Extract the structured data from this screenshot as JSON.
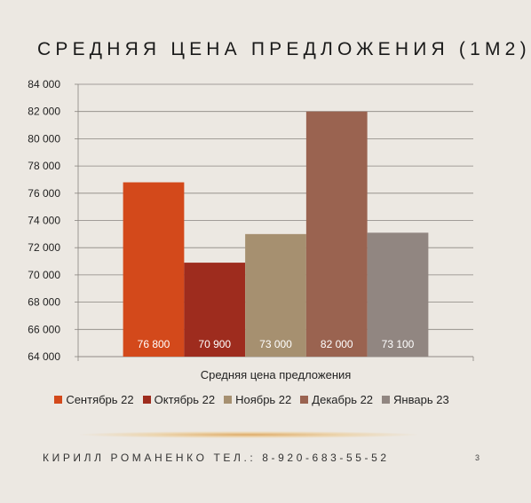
{
  "slide": {
    "title": "СРЕДНЯЯ ЦЕНА ПРЕДЛОЖЕНИЯ (1М2)",
    "footer": "КИРИЛЛ РОМАНЕНКО ТЕЛ.: 8-920-683-55-52",
    "page_number": "3"
  },
  "chart_data": {
    "type": "bar",
    "title": "",
    "xlabel": "Средняя цена предложения",
    "ylabel": "",
    "categories": [
      "Средняя цена предложения"
    ],
    "series": [
      {
        "name": "Сентябрь 22",
        "values": [
          76800
        ],
        "label": "76 800",
        "color": "#d3491b"
      },
      {
        "name": "Октябрь 22",
        "values": [
          70900
        ],
        "label": "70 900",
        "color": "#9e2c1e"
      },
      {
        "name": "Ноябрь 22",
        "values": [
          73000
        ],
        "label": "73 000",
        "color": "#a69070"
      },
      {
        "name": "Декабрь 22",
        "values": [
          82000
        ],
        "label": "82 000",
        "color": "#9a6350"
      },
      {
        "name": "Январь 23",
        "values": [
          73100
        ],
        "label": "73 100",
        "color": "#918681"
      }
    ],
    "ylim": [
      64000,
      84000
    ],
    "y_ticks": [
      {
        "value": 64000,
        "label": "64 000"
      },
      {
        "value": 66000,
        "label": "66 000"
      },
      {
        "value": 68000,
        "label": "68 000"
      },
      {
        "value": 70000,
        "label": "70 000"
      },
      {
        "value": 72000,
        "label": "72 000"
      },
      {
        "value": 74000,
        "label": "74 000"
      },
      {
        "value": 76000,
        "label": "76 000"
      },
      {
        "value": 78000,
        "label": "78 000"
      },
      {
        "value": 80000,
        "label": "80 000"
      },
      {
        "value": 82000,
        "label": "82 000"
      },
      {
        "value": 84000,
        "label": "84 000"
      }
    ],
    "grid": true,
    "legend_position": "bottom"
  }
}
